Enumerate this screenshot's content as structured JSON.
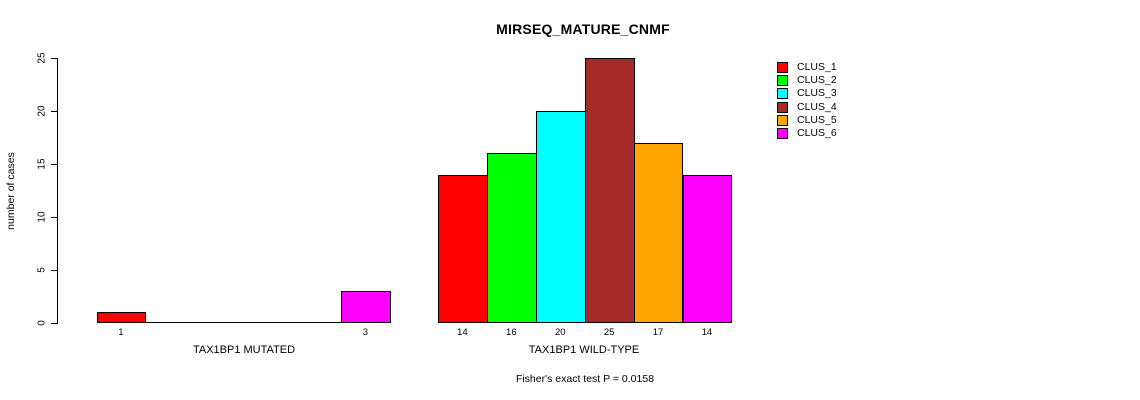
{
  "chart_data": {
    "type": "bar",
    "title": "MIRSEQ_MATURE_CNMF",
    "ylabel": "number of cases",
    "ylim": [
      0,
      25
    ],
    "yticks": [
      0,
      5,
      10,
      15,
      20,
      25
    ],
    "grid": false,
    "legend_position": "right",
    "series": [
      "CLUS_1",
      "CLUS_2",
      "CLUS_3",
      "CLUS_4",
      "CLUS_5",
      "CLUS_6"
    ],
    "series_colors": [
      "#ff0000",
      "#00ff00",
      "#00ffff",
      "#a52a2a",
      "#ffa500",
      "#ff00ff"
    ],
    "groups": [
      {
        "label": "TAX1BP1 MUTATED",
        "values": [
          1,
          0,
          0,
          0,
          0,
          3
        ]
      },
      {
        "label": "TAX1BP1 WILD-TYPE",
        "values": [
          14,
          16,
          20,
          25,
          17,
          14
        ]
      }
    ],
    "bar_value_labels": {
      "group_1": [
        "1",
        "3"
      ],
      "group_2": [
        "14",
        "16",
        "20",
        "25",
        "17",
        "14"
      ]
    },
    "footnote": "Fisher's exact test P = 0.0158"
  }
}
